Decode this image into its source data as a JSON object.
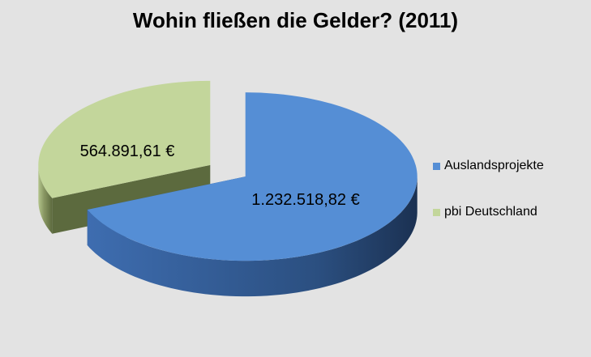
{
  "chart_data": {
    "type": "pie",
    "title": "Wohin fließen die Gelder? (2011)",
    "categories": [
      "Auslandsprojekte",
      "pbi Deutschland"
    ],
    "values": [
      1232518.82,
      564891.61
    ],
    "data_labels": [
      "1.232.518,82 €",
      "564.891,61 €"
    ],
    "colors": [
      "#558ed5",
      "#c3d69b"
    ],
    "side_colors": [
      "#2e5282",
      "#5c6a3e"
    ],
    "legend": [
      "Auslandsprojekte",
      "pbi Deutschland"
    ],
    "legend_position": "right",
    "exploded": true,
    "view": "3d"
  }
}
